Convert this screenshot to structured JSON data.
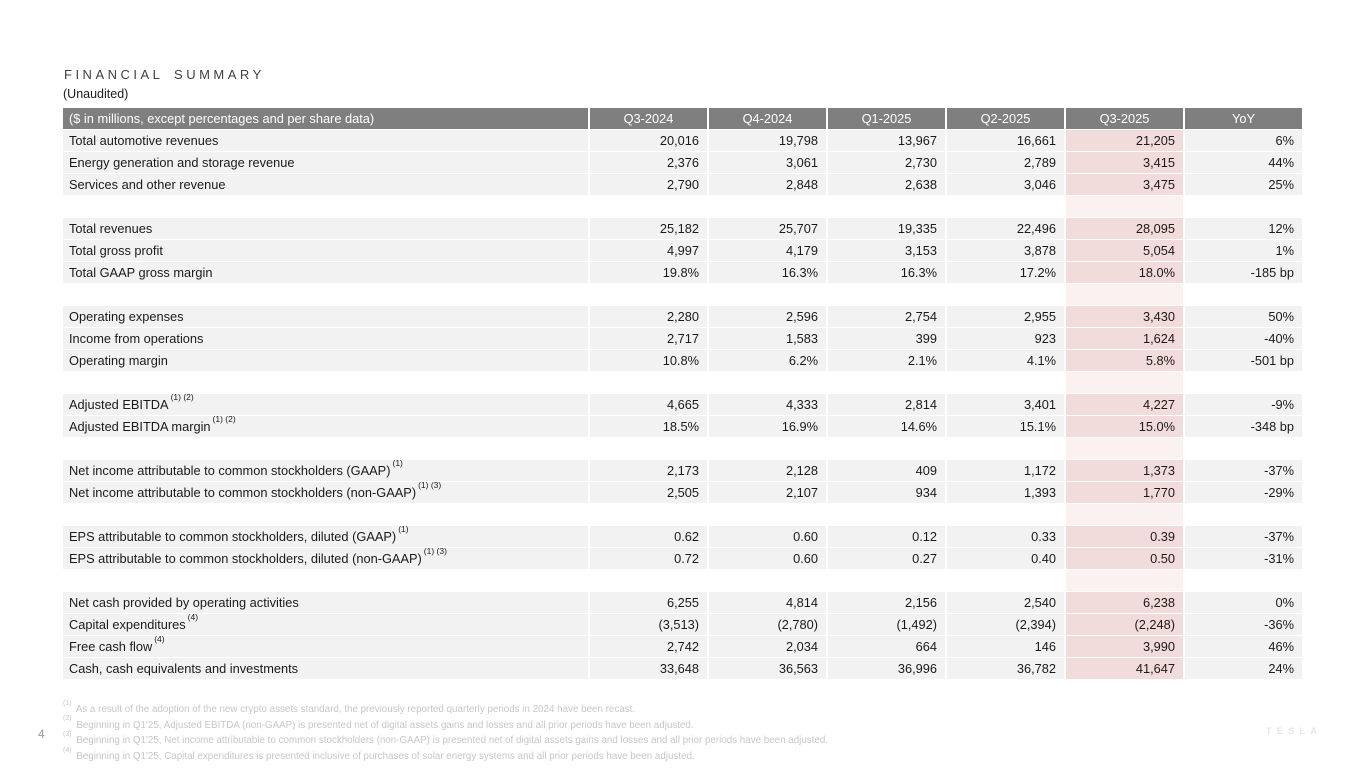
{
  "title": "FINANCIAL SUMMARY",
  "subtitle": "(Unaudited)",
  "colors": {
    "header_bg": "#7f7f7f",
    "header_text": "#ffffff",
    "row_bg": "#f2f2f2",
    "highlight_bg": "#f2dcdb",
    "highlight_spacer_bg": "#fbf1f0",
    "body_text": "#1a1a1a",
    "footnote_text": "#c7c7c7",
    "title_text": "#3f3f3f"
  },
  "table": {
    "columns": [
      "($ in millions, except percentages and per share data)",
      "Q3-2024",
      "Q4-2024",
      "Q1-2025",
      "Q2-2025",
      "Q3-2025",
      "YoY"
    ],
    "highlight_column": "Q3-2025",
    "rows": [
      {
        "type": "data",
        "label": "Total automotive revenues",
        "values": [
          "20,016",
          "19,798",
          "13,967",
          "16,661",
          "21,205",
          "6%"
        ]
      },
      {
        "type": "data",
        "label": "Energy generation and storage revenue",
        "values": [
          "2,376",
          "3,061",
          "2,730",
          "2,789",
          "3,415",
          "44%"
        ]
      },
      {
        "type": "data",
        "label": "Services and other revenue",
        "values": [
          "2,790",
          "2,848",
          "2,638",
          "3,046",
          "3,475",
          "25%"
        ]
      },
      {
        "type": "spacer"
      },
      {
        "type": "data",
        "label": "Total revenues",
        "values": [
          "25,182",
          "25,707",
          "19,335",
          "22,496",
          "28,095",
          "12%"
        ]
      },
      {
        "type": "data",
        "label": "Total gross profit",
        "values": [
          "4,997",
          "4,179",
          "3,153",
          "3,878",
          "5,054",
          "1%"
        ]
      },
      {
        "type": "data",
        "label": "Total GAAP gross margin",
        "values": [
          "19.8%",
          "16.3%",
          "16.3%",
          "17.2%",
          "18.0%",
          "-185 bp"
        ]
      },
      {
        "type": "spacer"
      },
      {
        "type": "data",
        "label": "Operating expenses",
        "values": [
          "2,280",
          "2,596",
          "2,754",
          "2,955",
          "3,430",
          "50%"
        ]
      },
      {
        "type": "data",
        "label": "Income from operations",
        "values": [
          "2,717",
          "1,583",
          "399",
          "923",
          "1,624",
          "-40%"
        ]
      },
      {
        "type": "data",
        "label": "Operating margin",
        "values": [
          "10.8%",
          "6.2%",
          "2.1%",
          "4.1%",
          "5.8%",
          "-501 bp"
        ]
      },
      {
        "type": "spacer"
      },
      {
        "type": "data",
        "label": "Adjusted EBITDA",
        "sup": "(1) (2)",
        "values": [
          "4,665",
          "4,333",
          "2,814",
          "3,401",
          "4,227",
          "-9%"
        ]
      },
      {
        "type": "data",
        "label": "Adjusted EBITDA margin",
        "sup": "(1) (2)",
        "values": [
          "18.5%",
          "16.9%",
          "14.6%",
          "15.1%",
          "15.0%",
          "-348 bp"
        ]
      },
      {
        "type": "spacer"
      },
      {
        "type": "data",
        "label": "Net income attributable to common stockholders (GAAP)",
        "sup": "(1)",
        "values": [
          "2,173",
          "2,128",
          "409",
          "1,172",
          "1,373",
          "-37%"
        ]
      },
      {
        "type": "data",
        "label": "Net income attributable to common stockholders (non-GAAP)",
        "sup": "(1) (3)",
        "values": [
          "2,505",
          "2,107",
          "934",
          "1,393",
          "1,770",
          "-29%"
        ]
      },
      {
        "type": "spacer"
      },
      {
        "type": "data",
        "label": "EPS attributable to common stockholders, diluted (GAAP)",
        "sup": "(1)",
        "values": [
          "0.62",
          "0.60",
          "0.12",
          "0.33",
          "0.39",
          "-37%"
        ]
      },
      {
        "type": "data",
        "label": "EPS attributable to common stockholders, diluted (non-GAAP)",
        "sup": "(1) (3)",
        "values": [
          "0.72",
          "0.60",
          "0.27",
          "0.40",
          "0.50",
          "-31%"
        ]
      },
      {
        "type": "spacer"
      },
      {
        "type": "data",
        "label": "Net cash provided by operating activities",
        "values": [
          "6,255",
          "4,814",
          "2,156",
          "2,540",
          "6,238",
          "0%"
        ]
      },
      {
        "type": "data",
        "label": "Capital expenditures",
        "sup": "(4)",
        "values": [
          "(3,513)",
          "(2,780)",
          "(1,492)",
          "(2,394)",
          "(2,248)",
          "-36%"
        ]
      },
      {
        "type": "data",
        "label": "Free cash flow",
        "sup": "(4)",
        "values": [
          "2,742",
          "2,034",
          "664",
          "146",
          "3,990",
          "46%"
        ]
      },
      {
        "type": "data",
        "label": "Cash, cash equivalents and investments",
        "values": [
          "33,648",
          "36,563",
          "36,996",
          "36,782",
          "41,647",
          "24%"
        ]
      }
    ]
  },
  "footnotes": [
    {
      "marker": "(1)",
      "text": "As a result of the adoption of the new crypto assets standard, the previously reported quarterly periods in 2024 have been recast."
    },
    {
      "marker": "(2)",
      "text": "Beginning in Q1'25, Adjusted EBITDA (non-GAAP) is presented net of digital assets gains and losses and all prior periods have been adjusted."
    },
    {
      "marker": "(3)",
      "text": "Beginning in Q1'25, Net income attributable to common stockholders (non-GAAP) is presented net of digital assets gains and losses and all prior periods have been adjusted."
    },
    {
      "marker": "(4)",
      "text": "Beginning in Q1'25, Capital expenditures is presented inclusive of purchases of solar energy systems and all prior periods have been adjusted."
    }
  ],
  "footer": {
    "page_number": "4",
    "logo_text": "TESLA"
  }
}
